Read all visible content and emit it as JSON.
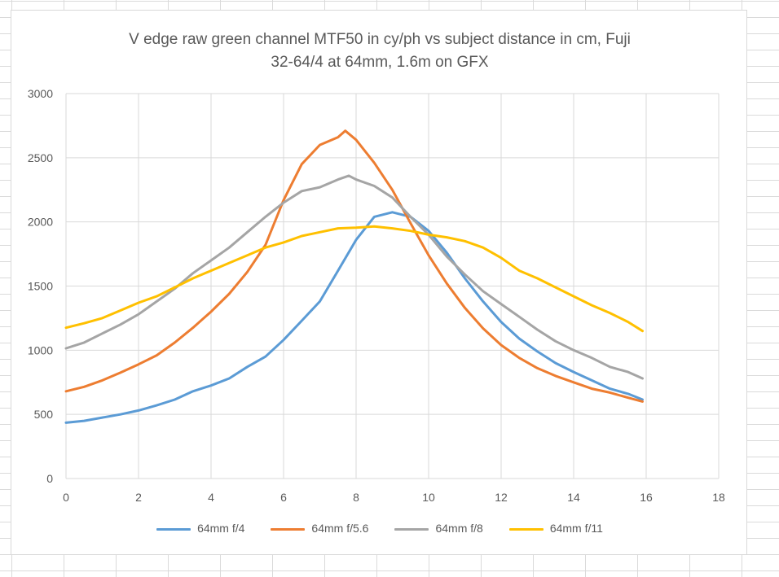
{
  "chart_data": {
    "type": "line",
    "title_line1": "V edge raw green channel MTF50 in cy/ph vs subject distance in cm, Fuji",
    "title_line2": "32-64/4 at 64mm, 1.6m on GFX",
    "xlabel": "",
    "ylabel": "",
    "xlim": [
      0,
      18
    ],
    "ylim": [
      0,
      3000
    ],
    "x_ticks": [
      "0",
      "2",
      "4",
      "6",
      "8",
      "10",
      "12",
      "14",
      "16",
      "18"
    ],
    "y_ticks": [
      "0",
      "500",
      "1000",
      "1500",
      "2000",
      "2500",
      "3000"
    ],
    "grid": "on",
    "legend_position": "bottom",
    "series": [
      {
        "name": "64mm f/4",
        "color": "#5b9bd5",
        "points": [
          [
            0,
            435
          ],
          [
            0.5,
            450
          ],
          [
            1,
            475
          ],
          [
            1.5,
            500
          ],
          [
            2,
            530
          ],
          [
            2.5,
            570
          ],
          [
            3,
            615
          ],
          [
            3.5,
            680
          ],
          [
            4,
            725
          ],
          [
            4.5,
            780
          ],
          [
            5,
            870
          ],
          [
            5.5,
            950
          ],
          [
            6,
            1080
          ],
          [
            6.5,
            1230
          ],
          [
            7,
            1380
          ],
          [
            7.5,
            1620
          ],
          [
            8,
            1860
          ],
          [
            8.5,
            2040
          ],
          [
            9,
            2075
          ],
          [
            9.5,
            2040
          ],
          [
            10,
            1930
          ],
          [
            10.5,
            1760
          ],
          [
            11,
            1560
          ],
          [
            11.5,
            1380
          ],
          [
            12,
            1220
          ],
          [
            12.5,
            1090
          ],
          [
            13,
            990
          ],
          [
            13.5,
            900
          ],
          [
            14,
            830
          ],
          [
            14.5,
            765
          ],
          [
            15,
            700
          ],
          [
            15.5,
            660
          ],
          [
            15.9,
            615
          ]
        ]
      },
      {
        "name": "64mm f/5.6",
        "color": "#ed7d31",
        "points": [
          [
            0,
            680
          ],
          [
            0.5,
            715
          ],
          [
            1,
            765
          ],
          [
            1.5,
            825
          ],
          [
            2,
            890
          ],
          [
            2.5,
            960
          ],
          [
            3,
            1060
          ],
          [
            3.5,
            1175
          ],
          [
            4,
            1300
          ],
          [
            4.5,
            1440
          ],
          [
            5,
            1610
          ],
          [
            5.5,
            1820
          ],
          [
            6,
            2170
          ],
          [
            6.5,
            2450
          ],
          [
            7,
            2600
          ],
          [
            7.5,
            2660
          ],
          [
            7.7,
            2710
          ],
          [
            8,
            2640
          ],
          [
            8.5,
            2460
          ],
          [
            9,
            2250
          ],
          [
            9.5,
            1990
          ],
          [
            10,
            1740
          ],
          [
            10.5,
            1520
          ],
          [
            11,
            1330
          ],
          [
            11.5,
            1170
          ],
          [
            12,
            1040
          ],
          [
            12.5,
            940
          ],
          [
            13,
            860
          ],
          [
            13.5,
            800
          ],
          [
            14,
            750
          ],
          [
            14.5,
            700
          ],
          [
            15,
            670
          ],
          [
            15.5,
            630
          ],
          [
            15.9,
            600
          ]
        ]
      },
      {
        "name": "64mm f/8",
        "color": "#a5a5a5",
        "points": [
          [
            0,
            1015
          ],
          [
            0.5,
            1060
          ],
          [
            1,
            1130
          ],
          [
            1.5,
            1200
          ],
          [
            2,
            1280
          ],
          [
            2.5,
            1380
          ],
          [
            3,
            1480
          ],
          [
            3.5,
            1600
          ],
          [
            4,
            1700
          ],
          [
            4.5,
            1800
          ],
          [
            5,
            1920
          ],
          [
            5.5,
            2040
          ],
          [
            6,
            2150
          ],
          [
            6.5,
            2240
          ],
          [
            7,
            2270
          ],
          [
            7.5,
            2330
          ],
          [
            7.8,
            2360
          ],
          [
            8,
            2330
          ],
          [
            8.5,
            2280
          ],
          [
            9,
            2190
          ],
          [
            9.5,
            2040
          ],
          [
            10,
            1900
          ],
          [
            10.5,
            1730
          ],
          [
            11,
            1590
          ],
          [
            11.5,
            1460
          ],
          [
            12,
            1360
          ],
          [
            12.5,
            1260
          ],
          [
            13,
            1160
          ],
          [
            13.5,
            1070
          ],
          [
            14,
            1000
          ],
          [
            14.5,
            940
          ],
          [
            15,
            870
          ],
          [
            15.5,
            830
          ],
          [
            15.9,
            780
          ]
        ]
      },
      {
        "name": "64mm f/11",
        "color": "#ffc000",
        "points": [
          [
            0,
            1175
          ],
          [
            0.5,
            1210
          ],
          [
            1,
            1250
          ],
          [
            1.5,
            1310
          ],
          [
            2,
            1370
          ],
          [
            2.5,
            1420
          ],
          [
            3,
            1490
          ],
          [
            3.5,
            1560
          ],
          [
            4,
            1620
          ],
          [
            4.5,
            1680
          ],
          [
            5,
            1740
          ],
          [
            5.5,
            1800
          ],
          [
            6,
            1840
          ],
          [
            6.5,
            1890
          ],
          [
            7,
            1920
          ],
          [
            7.5,
            1950
          ],
          [
            8,
            1955
          ],
          [
            8.5,
            1965
          ],
          [
            9,
            1950
          ],
          [
            9.5,
            1930
          ],
          [
            10,
            1900
          ],
          [
            10.5,
            1880
          ],
          [
            11,
            1850
          ],
          [
            11.5,
            1800
          ],
          [
            12,
            1720
          ],
          [
            12.5,
            1620
          ],
          [
            13,
            1560
          ],
          [
            13.5,
            1490
          ],
          [
            14,
            1420
          ],
          [
            14.5,
            1350
          ],
          [
            15,
            1290
          ],
          [
            15.5,
            1220
          ],
          [
            15.9,
            1150
          ]
        ]
      }
    ]
  }
}
